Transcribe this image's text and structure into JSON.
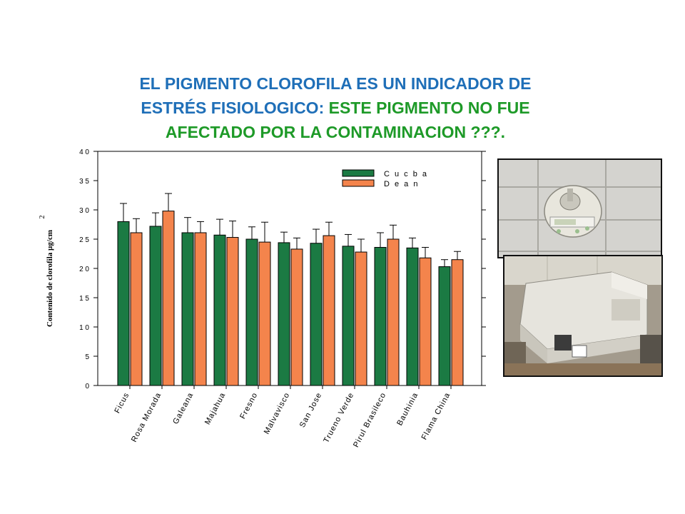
{
  "title": {
    "line1": "EL PIGMENTO CLOROFILA ES UN INDICADOR DE",
    "line2_blue": "ESTRÉS  FISIOLOGICO: ",
    "line2_green": "ESTE PIGMENTO NO FUE",
    "line3": "AFECTADO POR LA CONTAMINACION ???."
  },
  "colors": {
    "title_blue": "#1f6fb8",
    "title_green": "#1e9a28",
    "series_cucba": "#1b7a43",
    "series_dean": "#f4844c"
  },
  "photos": {
    "meter": "chlorophyll-meter-photo",
    "spectro": "spectrophotometer-photo"
  },
  "chart_data": {
    "type": "bar",
    "ylabel": "Contenido de clorofila µg/cm",
    "ylabel_sup": "2",
    "ylim": [
      0,
      40
    ],
    "yticks": [
      0,
      5,
      10,
      15,
      20,
      25,
      30,
      35,
      40
    ],
    "ytick_labels": [
      "0",
      "5",
      "1 0",
      "1 5",
      "2 0",
      "2 5",
      "3 0",
      "3 5",
      "4 0"
    ],
    "categories": [
      "Ficus",
      "Rosa Morada",
      "Galeana",
      "Majahua",
      "Fresno",
      "Malvavisco",
      "San Jose",
      "Trueno Verde",
      "Pirul Brasileco",
      "Bauhinia",
      "Flama China"
    ],
    "series": [
      {
        "name": "C u c b a",
        "values": [
          28.0,
          27.2,
          26.1,
          25.7,
          25.0,
          24.4,
          24.3,
          23.8,
          23.6,
          23.5,
          20.3
        ],
        "errors": [
          3.1,
          2.3,
          2.6,
          2.7,
          2.1,
          1.8,
          2.4,
          2.0,
          2.5,
          1.7,
          1.2
        ]
      },
      {
        "name": "D e a n",
        "values": [
          26.1,
          29.8,
          26.1,
          25.3,
          24.5,
          23.3,
          25.6,
          22.8,
          25.0,
          21.8,
          21.5
        ],
        "errors": [
          2.4,
          3.0,
          1.9,
          2.8,
          3.4,
          1.9,
          2.3,
          2.2,
          2.4,
          1.8,
          1.4
        ]
      }
    ],
    "legend_position": "top-right",
    "grid": true
  }
}
